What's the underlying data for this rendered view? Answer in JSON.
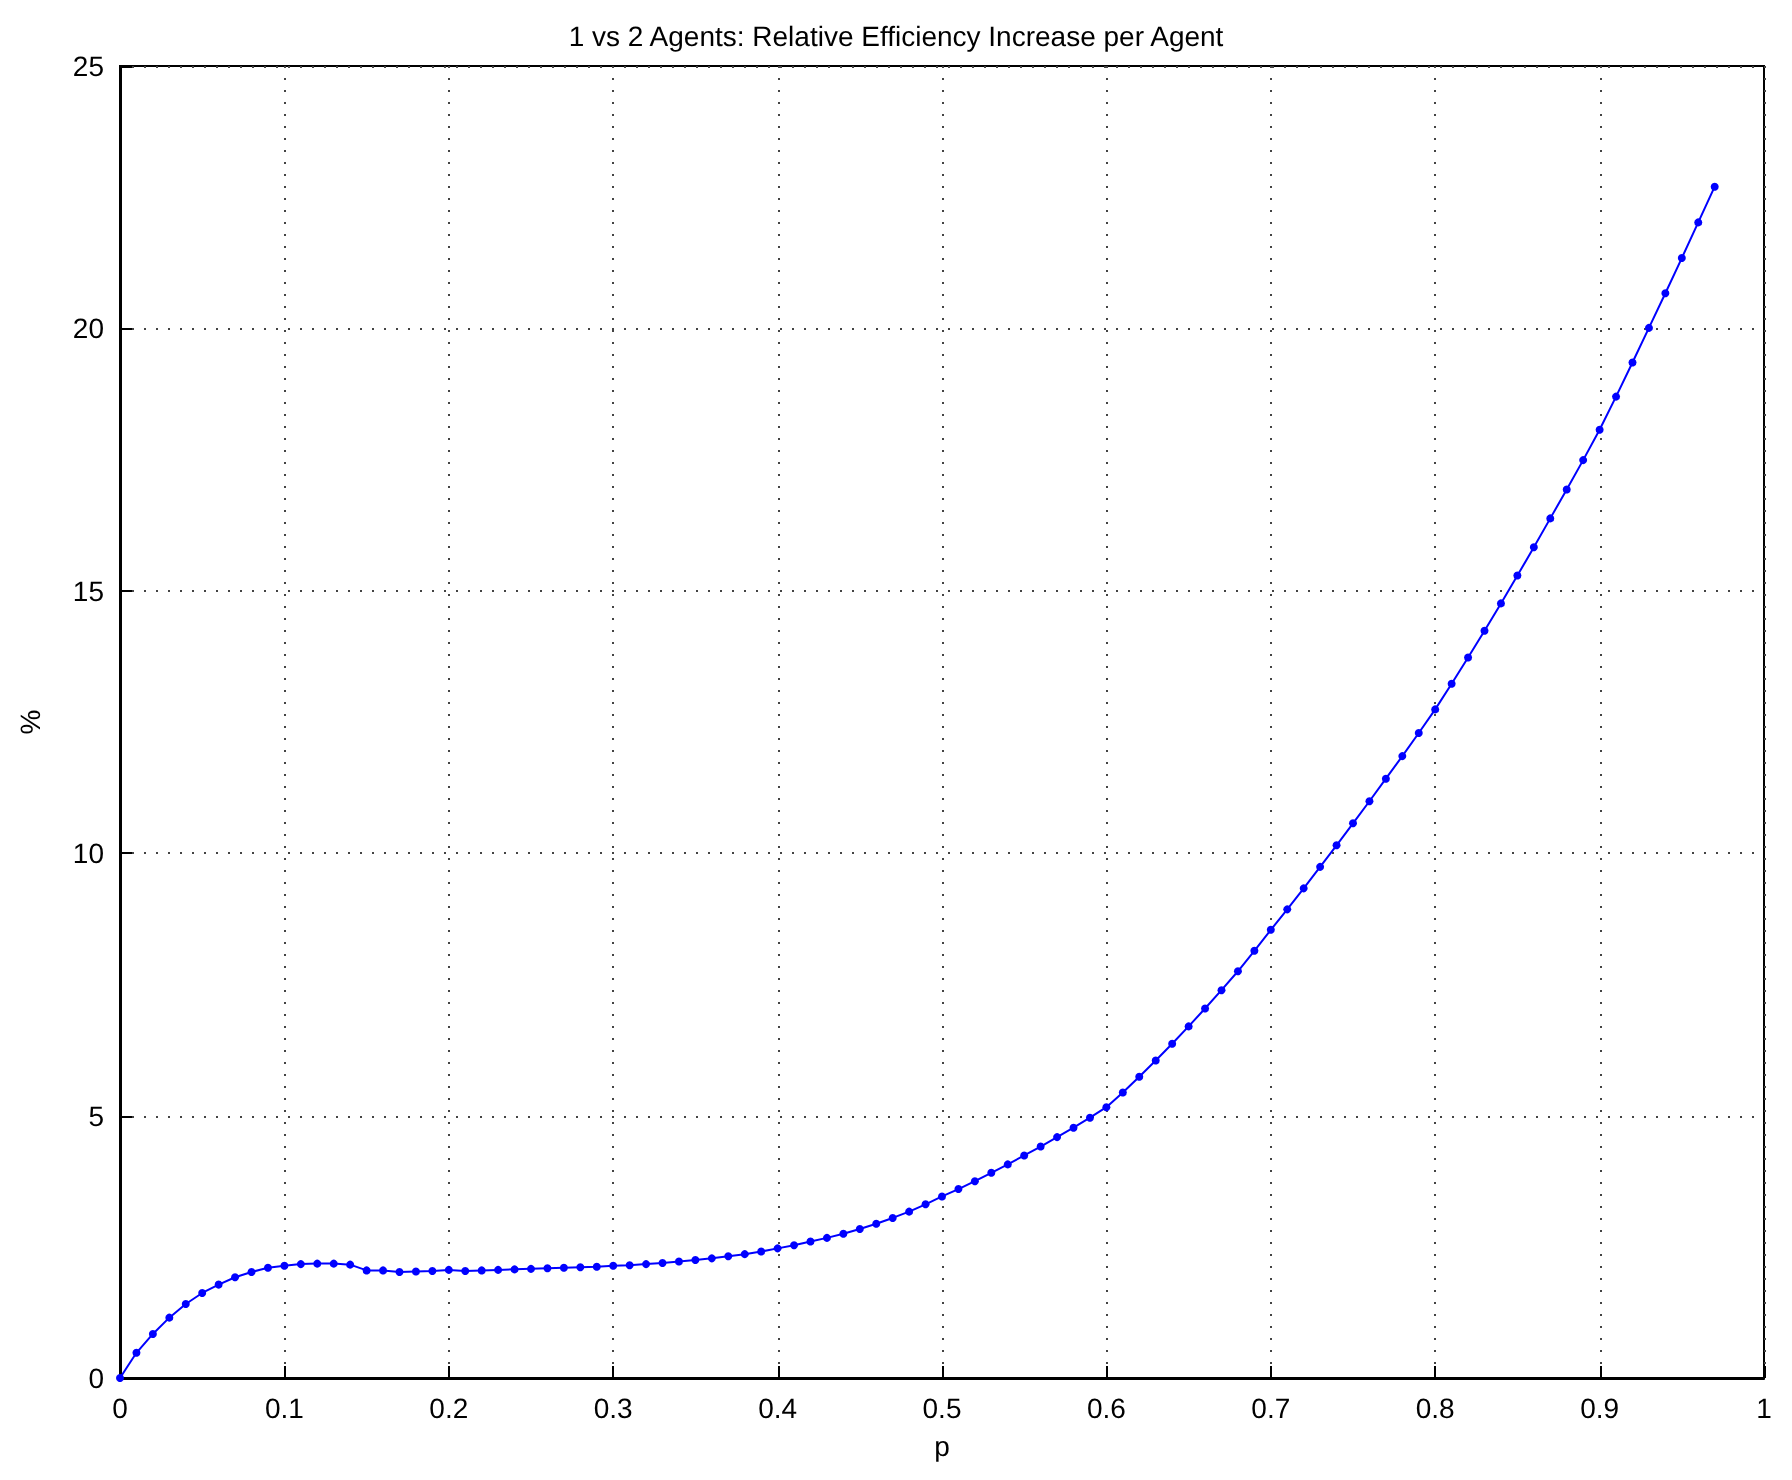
{
  "chart_data": {
    "type": "line",
    "title": "1 vs 2 Agents: Relative Efficiency Increase per Agent",
    "xlabel": "p",
    "ylabel": "%",
    "x": [
      0,
      0.01,
      0.02,
      0.03,
      0.04,
      0.05,
      0.06,
      0.07,
      0.08,
      0.09,
      0.1,
      0.11,
      0.12,
      0.13,
      0.14,
      0.15,
      0.16,
      0.17,
      0.18,
      0.19,
      0.2,
      0.21,
      0.22,
      0.23,
      0.24,
      0.25,
      0.26,
      0.27,
      0.28,
      0.29,
      0.3,
      0.31,
      0.32,
      0.33,
      0.34,
      0.35,
      0.36,
      0.37,
      0.38,
      0.39,
      0.4,
      0.41,
      0.42,
      0.43,
      0.44,
      0.45,
      0.46,
      0.47,
      0.48,
      0.49,
      0.5,
      0.51,
      0.52,
      0.53,
      0.54,
      0.55,
      0.56,
      0.57,
      0.58,
      0.59,
      0.6,
      0.61,
      0.62,
      0.63,
      0.64,
      0.65,
      0.66,
      0.67,
      0.68,
      0.69,
      0.7,
      0.71,
      0.72,
      0.73,
      0.74,
      0.75,
      0.76,
      0.77,
      0.78,
      0.79,
      0.8,
      0.81,
      0.82,
      0.83,
      0.84,
      0.85,
      0.86,
      0.87,
      0.88,
      0.89,
      0.9,
      0.91,
      0.92,
      0.93,
      0.94,
      0.95,
      0.96,
      0.97
    ],
    "series": [
      {
        "color": "#0000ff",
        "values": [
          0,
          0.48,
          0.84,
          1.15,
          1.41,
          1.62,
          1.78,
          1.92,
          2.02,
          2.1,
          2.14,
          2.17,
          2.18,
          2.18,
          2.16,
          2.05,
          2.05,
          2.02,
          2.03,
          2.04,
          2.06,
          2.04,
          2.05,
          2.06,
          2.07,
          2.08,
          2.09,
          2.1,
          2.11,
          2.12,
          2.14,
          2.15,
          2.17,
          2.19,
          2.22,
          2.25,
          2.28,
          2.32,
          2.36,
          2.41,
          2.47,
          2.53,
          2.6,
          2.67,
          2.75,
          2.84,
          2.94,
          3.05,
          3.17,
          3.31,
          3.46,
          3.6,
          3.75,
          3.91,
          4.07,
          4.24,
          4.41,
          4.59,
          4.77,
          4.96,
          5.16,
          5.44,
          5.74,
          6.05,
          6.37,
          6.7,
          7.04,
          7.39,
          7.75,
          8.14,
          8.54,
          8.93,
          9.33,
          9.74,
          10.15,
          10.57,
          10.99,
          11.42,
          11.85,
          12.29,
          12.74,
          13.23,
          13.73,
          14.24,
          14.76,
          15.29,
          15.83,
          16.38,
          16.93,
          17.49,
          18.07,
          18.7,
          19.35,
          20.01,
          20.67,
          21.34,
          22.02,
          22.7
        ]
      }
    ],
    "xlim": [
      0,
      1
    ],
    "xticks": [
      0,
      0.1,
      0.2,
      0.3,
      0.4,
      0.5,
      0.6,
      0.7,
      0.8,
      0.9,
      1
    ],
    "ylim": [
      0,
      25
    ],
    "yticks": [
      0,
      5,
      10,
      15,
      20,
      25
    ],
    "grid": true,
    "marker": "circle",
    "line_style": "solid"
  }
}
